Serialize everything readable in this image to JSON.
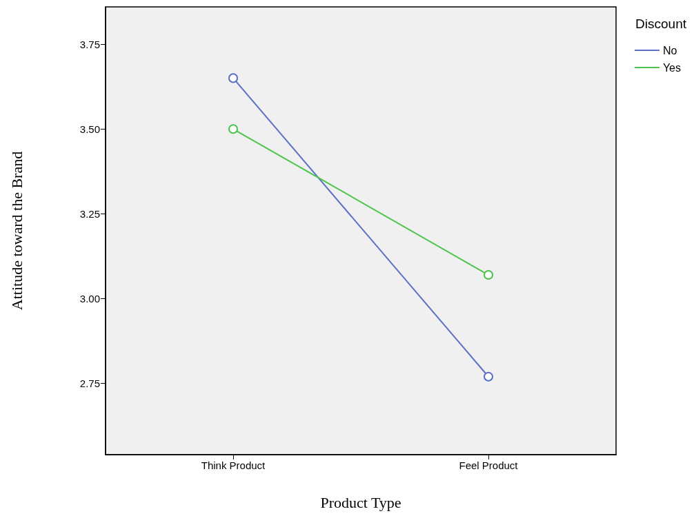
{
  "chart_data": {
    "type": "line",
    "xlabel": "Product Type",
    "ylabel": "Attitude toward the Brand",
    "legend_title": "Discount",
    "categories": [
      "Think Product",
      "Feel Product"
    ],
    "series": [
      {
        "name": "No",
        "color": "#5b6fc6",
        "values": [
          3.65,
          2.77
        ]
      },
      {
        "name": "Yes",
        "color": "#4cc44c",
        "values": [
          3.5,
          3.07
        ]
      }
    ],
    "ylim": [
      2.54,
      3.86
    ],
    "yticks": [
      {
        "value": 2.75,
        "label": "2.75"
      },
      {
        "value": 3.0,
        "label": "3.00"
      },
      {
        "value": 3.25,
        "label": "3.25"
      },
      {
        "value": 3.5,
        "label": "3.50"
      },
      {
        "value": 3.75,
        "label": "3.75"
      }
    ],
    "grid": false,
    "legend": "top right",
    "marker": "circle",
    "line_style": "solid"
  }
}
